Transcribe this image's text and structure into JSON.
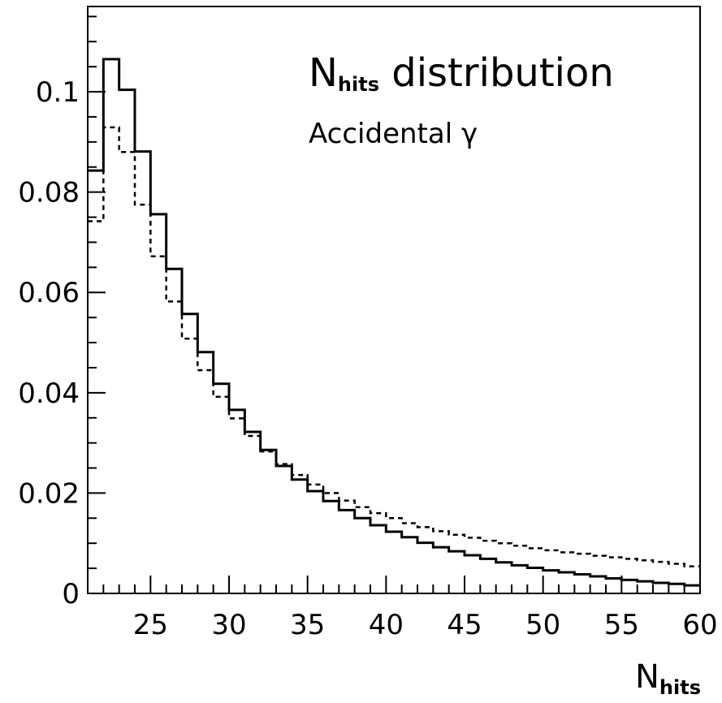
{
  "chart_data": {
    "type": "histogram",
    "title": {
      "main": "N",
      "main_sub": "hits",
      "main_rest": " distribution",
      "subtitle": "Accidental γ"
    },
    "xlabel": {
      "main": "N",
      "sub": "hits"
    },
    "ylabel": "",
    "xlim": [
      21,
      60
    ],
    "ylim": [
      0,
      0.117
    ],
    "x_ticks": [
      {
        "value": 25,
        "label": "25"
      },
      {
        "value": 30,
        "label": "30"
      },
      {
        "value": 35,
        "label": "35"
      },
      {
        "value": 40,
        "label": "40"
      },
      {
        "value": 45,
        "label": "45"
      },
      {
        "value": 50,
        "label": "50"
      },
      {
        "value": 55,
        "label": "55"
      },
      {
        "value": 60,
        "label": "60"
      }
    ],
    "y_ticks": [
      {
        "value": 0,
        "label": "0"
      },
      {
        "value": 0.02,
        "label": "0.02"
      },
      {
        "value": 0.04,
        "label": "0.04"
      },
      {
        "value": 0.06,
        "label": "0.06"
      },
      {
        "value": 0.08,
        "label": "0.08"
      },
      {
        "value": 0.1,
        "label": "0.1"
      }
    ],
    "bin_width": 1,
    "bin_start": 21,
    "series": [
      {
        "style": "solid",
        "color": "#000000",
        "values": [
          0.0843,
          0.1065,
          0.1004,
          0.0881,
          0.0756,
          0.0647,
          0.0557,
          0.0481,
          0.0418,
          0.0366,
          0.0322,
          0.0286,
          0.0254,
          0.0227,
          0.0204,
          0.0184,
          0.0166,
          0.015,
          0.0136,
          0.0123,
          0.0112,
          0.0101,
          0.0092,
          0.0084,
          0.0076,
          0.0069,
          0.0062,
          0.0056,
          0.0051,
          0.0046,
          0.0042,
          0.0038,
          0.0034,
          0.003,
          0.0027,
          0.0024,
          0.0021,
          0.0019,
          0.0016
        ]
      },
      {
        "style": "dashed",
        "color": "#000000",
        "values": [
          0.0742,
          0.0929,
          0.088,
          0.0775,
          0.0672,
          0.0582,
          0.0508,
          0.0445,
          0.0392,
          0.0349,
          0.0314,
          0.0283,
          0.0258,
          0.0236,
          0.0217,
          0.02,
          0.0185,
          0.0172,
          0.016,
          0.015,
          0.014,
          0.0132,
          0.0124,
          0.0117,
          0.0111,
          0.0105,
          0.01,
          0.0095,
          0.009,
          0.0086,
          0.0082,
          0.0079,
          0.0075,
          0.0072,
          0.0069,
          0.0066,
          0.0063,
          0.0059,
          0.0054
        ]
      }
    ]
  }
}
